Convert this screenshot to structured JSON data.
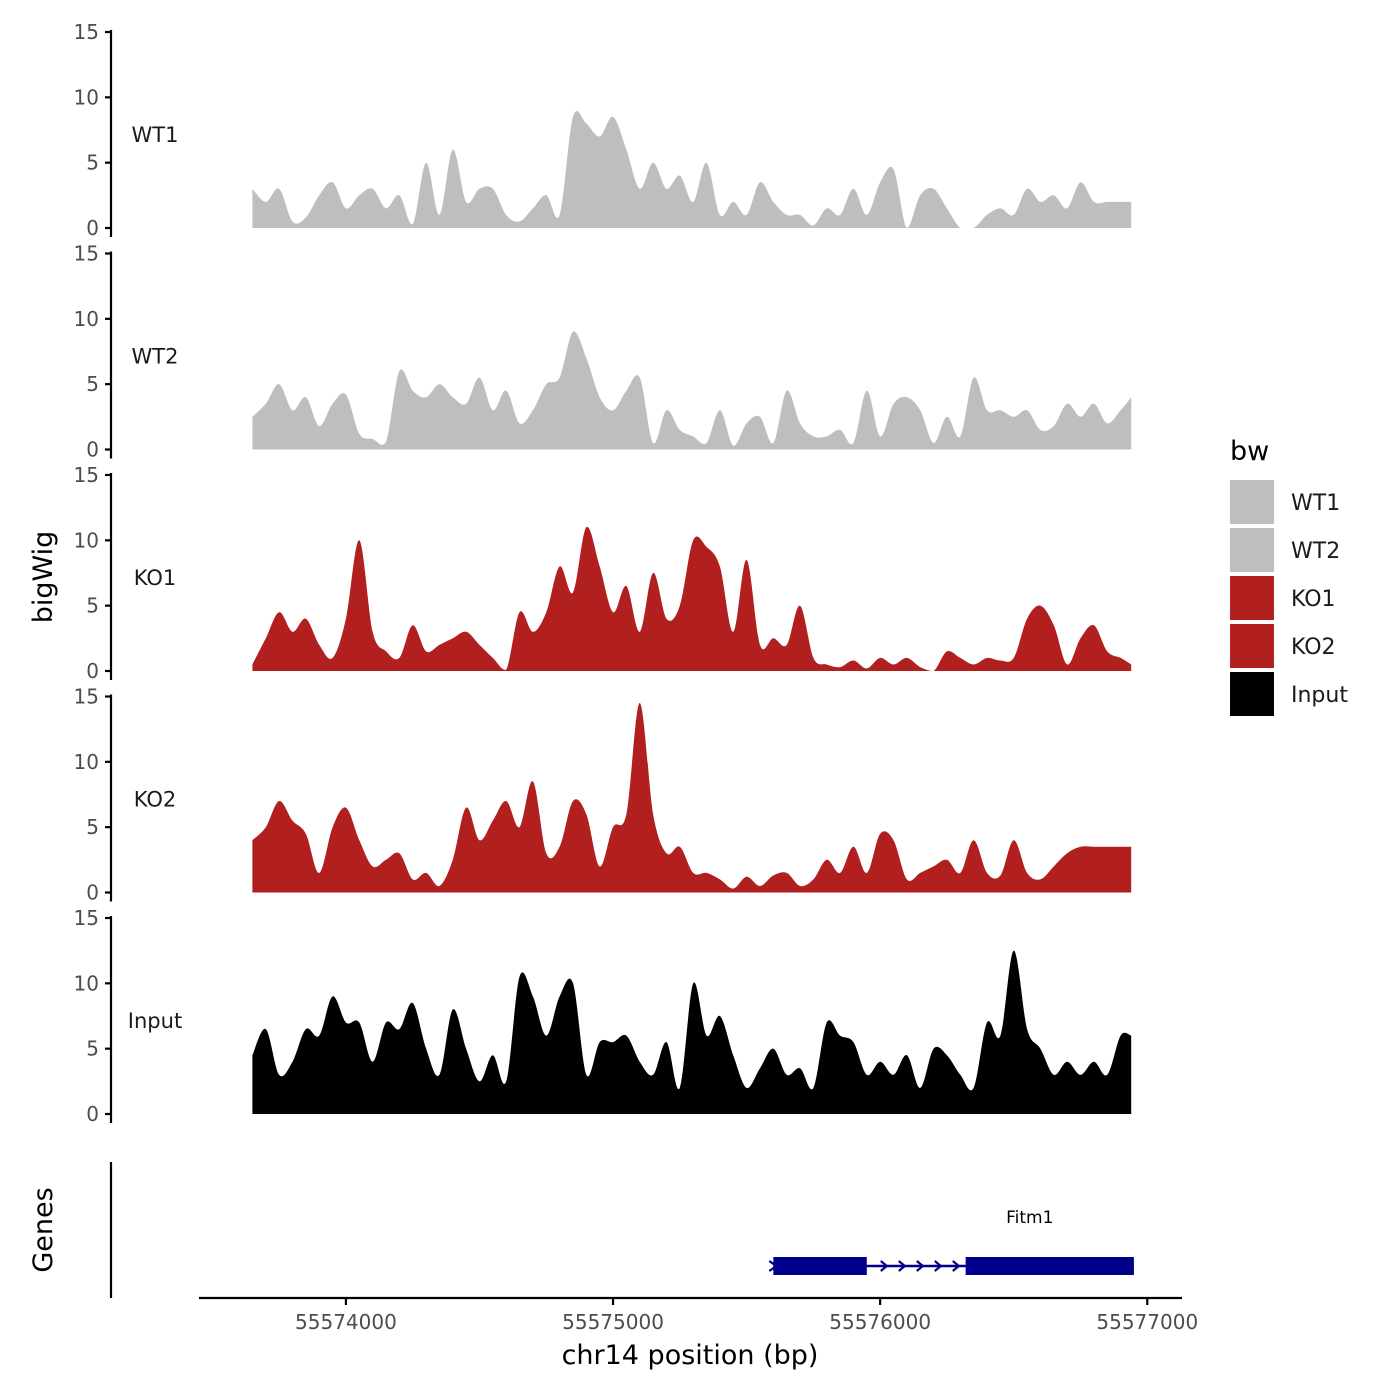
{
  "chart_data": {
    "type": "area",
    "region": "chr14",
    "xlabel": "chr14 position (bp)",
    "ylabel": "bigWig",
    "xlim": [
      55573450,
      55577130
    ],
    "data_range": [
      55573650,
      55576940
    ],
    "x_ticks": [
      55574000,
      55575000,
      55576000,
      55577000
    ],
    "x_tick_labels": [
      "55574000",
      "55575000",
      "55576000",
      "55577000"
    ],
    "ylim": [
      0,
      15
    ],
    "y_ticks": [
      0,
      5,
      10,
      15
    ],
    "y_tick_labels": [
      "0",
      "5",
      "10",
      "15"
    ],
    "series": [
      {
        "name": "WT1",
        "color": "#bebebe",
        "x": [
          55573650,
          55573700,
          55573750,
          55573800,
          55573850,
          55573900,
          55573950,
          55574000,
          55574050,
          55574100,
          55574150,
          55574200,
          55574250,
          55574300,
          55574350,
          55574400,
          55574450,
          55574500,
          55574550,
          55574600,
          55574650,
          55574700,
          55574750,
          55574800,
          55574850,
          55574900,
          55574950,
          55575000,
          55575050,
          55575100,
          55575150,
          55575200,
          55575250,
          55575300,
          55575350,
          55575400,
          55575450,
          55575500,
          55575550,
          55575600,
          55575650,
          55575700,
          55575750,
          55575800,
          55575850,
          55575900,
          55575950,
          55576000,
          55576050,
          55576100,
          55576150,
          55576200,
          55576250,
          55576300,
          55576350,
          55576400,
          55576450,
          55576500,
          55576550,
          55576600,
          55576650,
          55576700,
          55576750,
          55576800,
          55576850,
          55576900,
          55576940
        ],
        "values": [
          3,
          2,
          3,
          0.5,
          0.8,
          2.5,
          3.5,
          1.5,
          2.5,
          3,
          1.5,
          2.5,
          0.3,
          5,
          1,
          6,
          2,
          3,
          3,
          1,
          0.5,
          1.5,
          2.5,
          1,
          8.5,
          8,
          7,
          8.5,
          6,
          3,
          5,
          3,
          4,
          2,
          5,
          1,
          2,
          1,
          3.5,
          2,
          1,
          1,
          0.2,
          1.5,
          1,
          3,
          1,
          3.5,
          4.5,
          0,
          2.5,
          3,
          1.5,
          0,
          0,
          1,
          1.5,
          1,
          3,
          2,
          2.5,
          1.5,
          3.5,
          2,
          2,
          2,
          2
        ]
      },
      {
        "name": "WT2",
        "color": "#bebebe",
        "x": [
          55573650,
          55573700,
          55573750,
          55573800,
          55573850,
          55573900,
          55573950,
          55574000,
          55574050,
          55574100,
          55574150,
          55574200,
          55574250,
          55574300,
          55574350,
          55574400,
          55574450,
          55574500,
          55574550,
          55574600,
          55574650,
          55574700,
          55574750,
          55574800,
          55574850,
          55574900,
          55574950,
          55575000,
          55575050,
          55575100,
          55575150,
          55575200,
          55575250,
          55575300,
          55575350,
          55575400,
          55575450,
          55575500,
          55575550,
          55575600,
          55575650,
          55575700,
          55575750,
          55575800,
          55575850,
          55575900,
          55575950,
          55576000,
          55576050,
          55576100,
          55576150,
          55576200,
          55576250,
          55576300,
          55576350,
          55576400,
          55576450,
          55576500,
          55576550,
          55576600,
          55576650,
          55576700,
          55576750,
          55576800,
          55576850,
          55576900,
          55576940
        ],
        "values": [
          2.5,
          3.5,
          5,
          3,
          4,
          1.8,
          3.5,
          4.2,
          1.2,
          0.8,
          0.6,
          6,
          4.5,
          4,
          5,
          4,
          3.5,
          5.5,
          3,
          4.5,
          2,
          3,
          5,
          5.5,
          9,
          7,
          4,
          3,
          4.5,
          5.5,
          0.5,
          3,
          1.5,
          1,
          0.5,
          3,
          0.3,
          2,
          2.5,
          0.5,
          4.5,
          2,
          1,
          1,
          1.5,
          0.5,
          4.5,
          1,
          3.5,
          4,
          3,
          0.5,
          2.5,
          1,
          5.5,
          3,
          3,
          2.5,
          3,
          1.5,
          1.8,
          3.5,
          2.5,
          3.5,
          2,
          3,
          4
        ]
      },
      {
        "name": "KO1",
        "color": "#b21f1f",
        "x": [
          55573650,
          55573700,
          55573750,
          55573800,
          55573850,
          55573900,
          55573950,
          55574000,
          55574050,
          55574100,
          55574150,
          55574200,
          55574250,
          55574300,
          55574350,
          55574400,
          55574450,
          55574500,
          55574550,
          55574600,
          55574650,
          55574700,
          55574750,
          55574800,
          55574850,
          55574900,
          55574950,
          55575000,
          55575050,
          55575100,
          55575150,
          55575200,
          55575250,
          55575300,
          55575350,
          55575400,
          55575450,
          55575500,
          55575550,
          55575600,
          55575650,
          55575700,
          55575750,
          55575800,
          55575850,
          55575900,
          55575950,
          55576000,
          55576050,
          55576100,
          55576150,
          55576200,
          55576250,
          55576300,
          55576350,
          55576400,
          55576450,
          55576500,
          55576550,
          55576600,
          55576650,
          55576700,
          55576750,
          55576800,
          55576850,
          55576900,
          55576940
        ],
        "values": [
          0.5,
          2.5,
          4.5,
          3,
          4,
          2,
          1,
          4,
          10,
          3,
          1.5,
          1,
          3.5,
          1.5,
          2,
          2.5,
          3,
          2,
          1,
          0.1,
          4.5,
          3,
          4.5,
          8,
          6,
          11,
          8,
          4.5,
          6.5,
          3,
          7.5,
          4,
          5,
          10,
          9.5,
          8,
          3,
          8.5,
          2,
          2.5,
          2,
          5,
          1,
          0.5,
          0.3,
          0.8,
          0.2,
          1,
          0.5,
          1,
          0.3,
          0,
          1.5,
          1,
          0.5,
          1,
          0.8,
          1,
          4,
          5,
          3.5,
          0.5,
          2.5,
          3.5,
          1.5,
          1,
          0.5
        ]
      },
      {
        "name": "KO2",
        "color": "#b21f1f",
        "x": [
          55573650,
          55573700,
          55573750,
          55573800,
          55573850,
          55573900,
          55573950,
          55574000,
          55574050,
          55574100,
          55574150,
          55574200,
          55574250,
          55574300,
          55574350,
          55574400,
          55574450,
          55574500,
          55574550,
          55574600,
          55574650,
          55574700,
          55574750,
          55574800,
          55574850,
          55574900,
          55574950,
          55575000,
          55575050,
          55575100,
          55575150,
          55575200,
          55575250,
          55575300,
          55575350,
          55575400,
          55575450,
          55575500,
          55575550,
          55575600,
          55575650,
          55575700,
          55575750,
          55575800,
          55575850,
          55575900,
          55575950,
          55576000,
          55576050,
          55576100,
          55576150,
          55576200,
          55576250,
          55576300,
          55576350,
          55576400,
          55576450,
          55576500,
          55576550,
          55576600,
          55576650,
          55576700,
          55576750,
          55576800,
          55576850,
          55576900,
          55576940
        ],
        "values": [
          4,
          5,
          7,
          5.5,
          4.5,
          1.5,
          5,
          6.5,
          4,
          2,
          2.5,
          3,
          1,
          1.5,
          0.5,
          2.5,
          6.5,
          4,
          5.5,
          7,
          5,
          8.5,
          3,
          3.5,
          7,
          6,
          2,
          5,
          6,
          14.5,
          6,
          3,
          3.5,
          1.5,
          1.5,
          1,
          0.3,
          1.2,
          0.5,
          1.3,
          1.5,
          0.5,
          1,
          2.5,
          1.5,
          3.5,
          1.5,
          4.5,
          4,
          1,
          1.5,
          2,
          2.5,
          1.5,
          4,
          1.5,
          1.3,
          4,
          1.5,
          1,
          2,
          3,
          3.5,
          3.5,
          3.5,
          3.5,
          3.5
        ]
      },
      {
        "name": "Input",
        "color": "#000000",
        "x": [
          55573650,
          55573700,
          55573750,
          55573800,
          55573850,
          55573900,
          55573950,
          55574000,
          55574050,
          55574100,
          55574150,
          55574200,
          55574250,
          55574300,
          55574350,
          55574400,
          55574450,
          55574500,
          55574550,
          55574600,
          55574650,
          55574700,
          55574750,
          55574800,
          55574850,
          55574900,
          55574950,
          55575000,
          55575050,
          55575100,
          55575150,
          55575200,
          55575250,
          55575300,
          55575350,
          55575400,
          55575450,
          55575500,
          55575550,
          55575600,
          55575650,
          55575700,
          55575750,
          55575800,
          55575850,
          55575900,
          55575950,
          55576000,
          55576050,
          55576100,
          55576150,
          55576200,
          55576250,
          55576300,
          55576350,
          55576400,
          55576450,
          55576500,
          55576550,
          55576600,
          55576650,
          55576700,
          55576750,
          55576800,
          55576850,
          55576900,
          55576940
        ],
        "values": [
          4.5,
          6.5,
          3,
          4,
          6.5,
          6,
          9,
          7,
          7,
          4,
          7,
          6.5,
          8.5,
          5,
          3,
          8,
          5,
          2.5,
          4.5,
          2.5,
          10.5,
          9,
          6,
          9,
          10,
          3,
          5.5,
          5.5,
          6,
          4,
          3,
          5.5,
          2,
          10,
          6,
          7.5,
          4.5,
          2,
          3.5,
          5,
          3,
          3.5,
          2,
          7,
          6,
          5.5,
          3,
          4,
          3,
          4.5,
          2,
          5,
          4.5,
          3,
          2,
          7,
          6,
          12.5,
          6.5,
          5,
          3,
          4,
          3,
          4,
          3,
          6,
          6
        ]
      }
    ],
    "gene_track": {
      "title": "Genes",
      "genes": [
        {
          "name": "Fitm1",
          "strand": "+",
          "color": "#00008b",
          "start": 55575600,
          "end": 55576950,
          "exons": [
            [
              55575600,
              55575950
            ],
            [
              55576320,
              55576950
            ]
          ]
        }
      ]
    },
    "legend": {
      "title": "bw",
      "position": "right",
      "entries": [
        {
          "label": "WT1",
          "color": "#bebebe"
        },
        {
          "label": "WT2",
          "color": "#bebebe"
        },
        {
          "label": "KO1",
          "color": "#b21f1f"
        },
        {
          "label": "KO2",
          "color": "#b21f1f"
        },
        {
          "label": "Input",
          "color": "#000000"
        }
      ]
    }
  }
}
